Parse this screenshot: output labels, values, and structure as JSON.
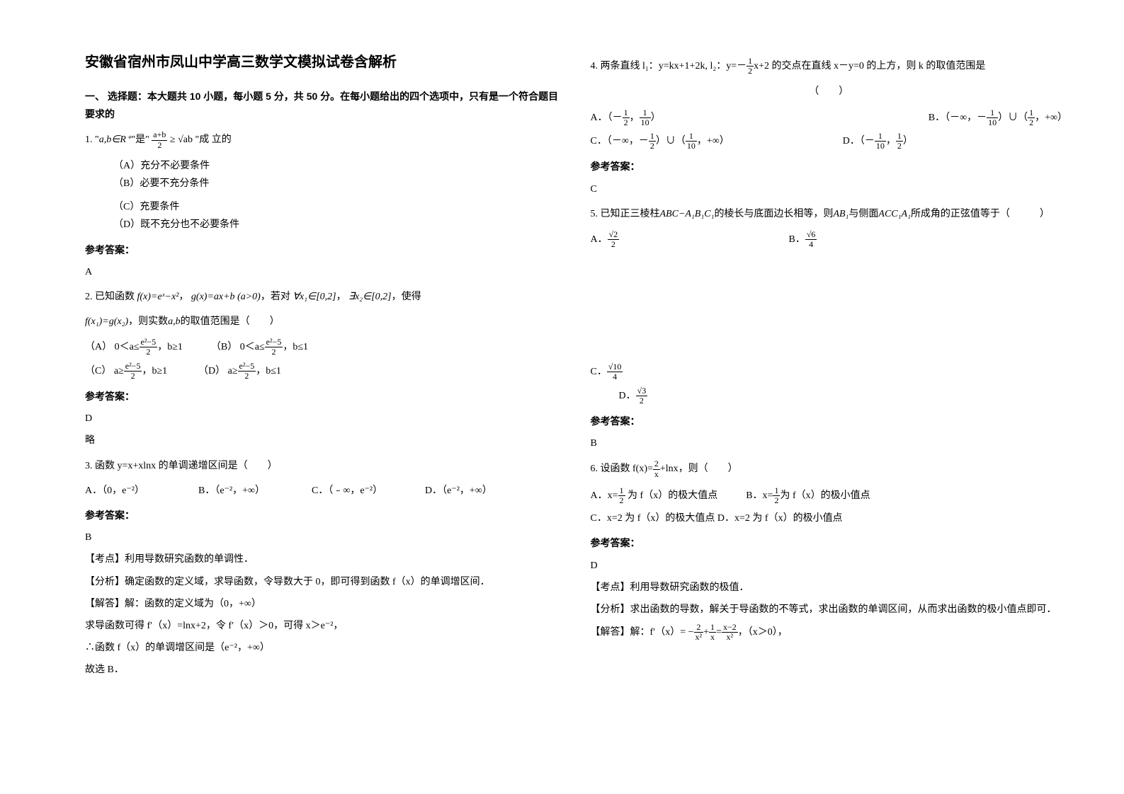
{
  "title": "安徽省宿州市凤山中学高三数学文模拟试卷含解析",
  "section1": "一、 选择题：本大题共 10 小题，每小题 5 分，共 50 分。在每小题给出的四个选项中，只有是一个符合题目要求的",
  "q1": {
    "stem_a": "1. \"",
    "stem_b": "a,b∈R⁺",
    "stem_c": "\"是\"",
    "stem_d": "\"成 立的",
    "optA": "（A）充分不必要条件",
    "optB": "（B）必要不充分条件",
    "optC": "（C）充要条件",
    "optD": "（D）既不充分也不必要条件",
    "ref": "参考答案：",
    "ans": "A"
  },
  "q2": {
    "stem1": "2. 已知函数",
    "fx": "f(x)=eˣ−x²",
    "comma1": "，",
    "gx": "g(x)=ax+b",
    "cond": "(a>0)",
    "stem2": "，若对",
    "forall": "∀x₁∈[0,2]",
    "comma2": "，",
    "exists": "∃x₂∈[0,2]",
    "stem3": "，使得",
    "line2a": "f(x₁)=g(x₂)",
    "line2b": "，则实数",
    "line2c": "a,b",
    "line2d": "的取值范围是（　　）",
    "optA_pre": "（A）",
    "optA_pre_B": "（B）",
    "optA_mid": "，b≥1",
    "optB_mid": "，b≤1",
    "optC_pre": "（C）",
    "optD_pre": "（D）",
    "optC_mid": "，b≥1",
    "optD_mid": "，b≤1",
    "ref": "参考答案：",
    "ans": "D",
    "lue": "略"
  },
  "q3": {
    "stem": "3. 函数 y=x+xlnx 的单调递增区间是（　　）",
    "optA": "A．（0，e⁻²）",
    "optB": "B．（e⁻²，+∞）",
    "optC": "C．（﹣∞，e⁻²）",
    "optD": "D．（e⁻²，+∞）",
    "ref": "参考答案：",
    "ans": "B",
    "kd": "【考点】利用导数研究函数的单调性．",
    "fx": "【分析】确定函数的定义域，求导函数，令导数大于 0，即可得到函数 f（x）的单调增区间．",
    "jd1": "【解答】解：函数的定义域为（0，+∞）",
    "jd2": "求导函数可得 f′（x）=lnx+2，令 f′（x）＞0，可得 x＞e⁻²，",
    "jd3": "∴函数 f（x）的单调增区间是（e⁻²，+∞）",
    "jd4": "故选 B．"
  },
  "q4": {
    "stem1": "4. 两条直线 l₁：y=kx+1+2k, l₂：y=－",
    "stem2": "x+2 的交点在直线 x－y=0 的上方，则 k 的取值范围是",
    "paren": "（　　）",
    "optA_pre": "A．（－",
    "optA_post": "）",
    "optB_pre": "B．（－∞，－",
    "optB_mid": "）∪（",
    "optB_post": "，+∞）",
    "optC_pre": "C．（－∞，－",
    "optC_mid": "）∪（",
    "optC_post": "，+∞）",
    "optD_pre": "D．（－",
    "optD_post": "）",
    "ref": "参考答案：",
    "ans": "C"
  },
  "q5": {
    "stem1": "5. 已知正三棱柱",
    "prism": "ABC−A₁B₁C₁",
    "stem2": "的棱长与底面边长相等，则",
    "ab1": "AB₁",
    "stem3": "与侧面",
    "acc": "ACC₁A₁",
    "stem4": "所成角的正弦值等于（　　　）",
    "optA": "A．",
    "optB": "B．",
    "optC": "C．",
    "optD": "D．",
    "ref": "参考答案：",
    "ans": "B"
  },
  "q6": {
    "stem1": "6. 设函数",
    "stem2": "，则（　　）",
    "optA_pre": "A．",
    "optA_post": " 为 f（x）的极大值点",
    "optB_pre": "B．",
    "optB_post": "为 f（x）的极小值点",
    "optC": "C．x=2  为 f（x）的极大值点 D．x=2 为 f（x）的极小值点",
    "ref": "参考答案：",
    "ans": "D",
    "kd": "【考点】利用导数研究函数的极值．",
    "fx": "【分析】求出函数的导数，解关于导函数的不等式，求出函数的单调区间，从而求出函数的极小值点即可．",
    "jd_pre": "【解答】解：f′（x）= −",
    "jd_mid": "+",
    "jd_eq": "=",
    "jd_post": "，（x＞0），"
  },
  "colors": {
    "text": "#000000",
    "bg": "#ffffff"
  }
}
